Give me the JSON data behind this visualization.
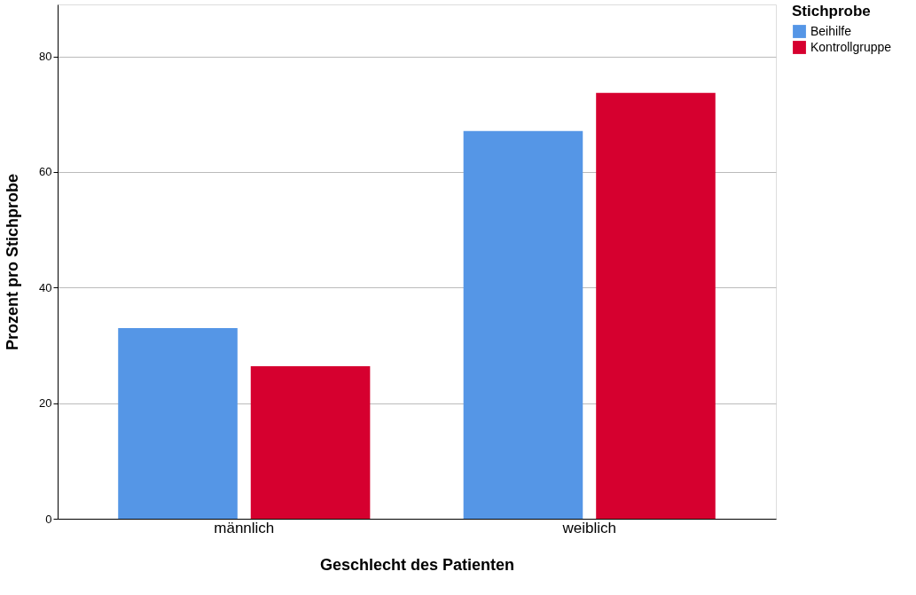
{
  "chart_data": {
    "type": "bar",
    "xlabel": "Geschlecht des Patienten",
    "ylabel": "Prozent pro Stichprobe",
    "legend_title": "Stichprobe",
    "categories": [
      "männlich",
      "weiblich"
    ],
    "series": [
      {
        "name": "Beihilfe",
        "color": "#5596e6",
        "values": [
          33.0,
          67.1
        ]
      },
      {
        "name": "Kontrollgruppe",
        "color": "#d6002f",
        "values": [
          26.4,
          73.7
        ]
      }
    ],
    "ylim": [
      0,
      89
    ],
    "yticks": [
      0,
      20,
      40,
      60,
      80
    ],
    "grid": "y",
    "legend": "top right"
  }
}
